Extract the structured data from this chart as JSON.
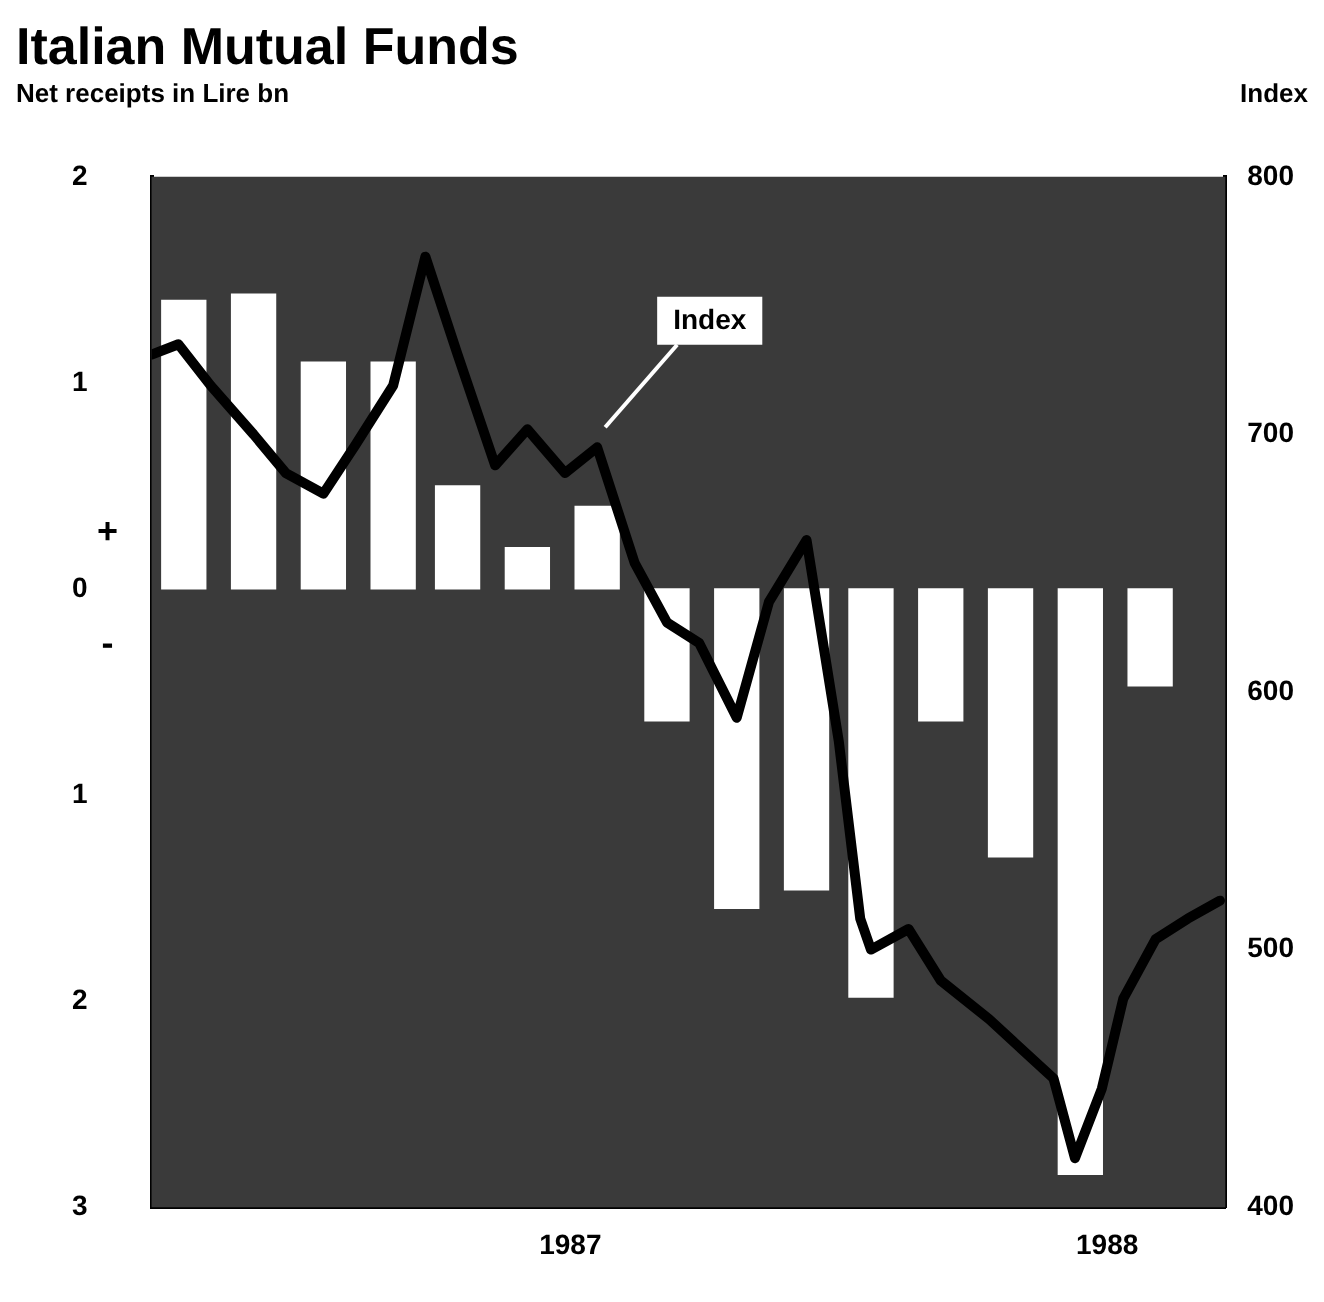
{
  "chart_data": {
    "type": "bar",
    "title": "Italian Mutual Funds",
    "ylabel": "Net receipts in Lire bn",
    "y2label": "Index",
    "xlim": [
      1986.22,
      1988.22
    ],
    "xticks": [
      1987,
      1988
    ],
    "ylim": [
      -3,
      2
    ],
    "yticks": [
      {
        "value": -3,
        "label": "3"
      },
      {
        "value": -2,
        "label": "2"
      },
      {
        "value": -1,
        "label": "1"
      },
      0,
      1,
      2
    ],
    "y2lim": [
      400,
      800
    ],
    "y2ticks": [
      400,
      500,
      600,
      700,
      800
    ],
    "annotations": [
      "+",
      "-"
    ],
    "grid": false,
    "legend": false,
    "series": [
      {
        "color": "#ffffff",
        "x": [
          1986.28,
          1986.41,
          1986.54,
          1986.67,
          1986.79,
          1986.92,
          1987.05,
          1987.18,
          1987.31,
          1987.44,
          1987.56,
          1987.69,
          1987.82,
          1987.95,
          1988.08
        ],
        "values": [
          1.4,
          1.43,
          1.1,
          1.1,
          0.5,
          0.2,
          0.4,
          -0.64,
          -1.55,
          -1.46,
          -1.98,
          -0.64,
          -1.3,
          -2.84,
          -0.47
        ]
      },
      {
        "type": "line",
        "name": "Index",
        "axis": "y2",
        "color": "#000000",
        "x": [
          1986.22,
          1986.27,
          1986.33,
          1986.41,
          1986.47,
          1986.54,
          1986.6,
          1986.67,
          1986.73,
          1986.79,
          1986.86,
          1986.92,
          1986.99,
          1987.05,
          1987.12,
          1987.18,
          1987.24,
          1987.31,
          1987.37,
          1987.44,
          1987.5,
          1987.54,
          1987.56,
          1987.63,
          1987.69,
          1987.78,
          1987.9,
          1987.94,
          1987.99,
          1988.03,
          1988.09,
          1988.15,
          1988.21
        ],
        "values": [
          731,
          735,
          719,
          700,
          685,
          677,
          696,
          719,
          769,
          731,
          688,
          702,
          685,
          695,
          650,
          627,
          619,
          590,
          635,
          659,
          581,
          512,
          500,
          508,
          488,
          473,
          450,
          419,
          446,
          481,
          504,
          512,
          519
        ]
      }
    ]
  }
}
